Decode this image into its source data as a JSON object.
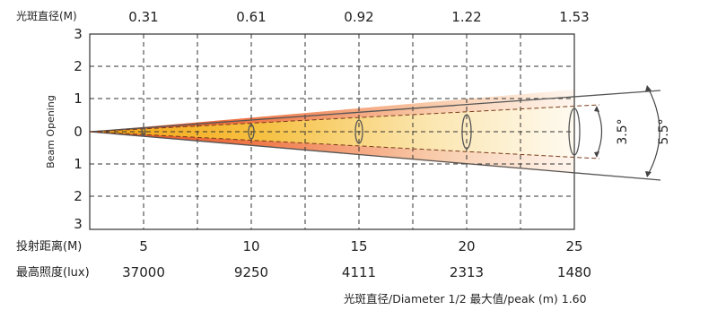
{
  "chart_data": {
    "type": "diagram",
    "diameter_label": "光斑直径(M)",
    "diameter_values": [
      "0.31",
      "0.61",
      "0.92",
      "1.22",
      "1.53"
    ],
    "y_ticks_top": [
      "3",
      "2",
      "1",
      "0"
    ],
    "y_ticks_bottom": [
      "1",
      "2",
      "3"
    ],
    "y_axis_label": "Beam Opening",
    "distance_label": "投射距离(M)",
    "distances": [
      "5",
      "10",
      "15",
      "20",
      "25"
    ],
    "illuminance_label": "最高照度(lux)",
    "illuminance_values": [
      "37000",
      "9250",
      "4111",
      "2313",
      "1480"
    ],
    "inner_angle": "3.5°",
    "outer_angle": "5.5°",
    "footer": "光斑直径/Diameter 1/2 最大值/peak (m) 1.60",
    "colors": {
      "beam_hot": "#f2a21b",
      "beam_mid": "#f06a3a",
      "beam_fade": "#fff4e6"
    }
  }
}
